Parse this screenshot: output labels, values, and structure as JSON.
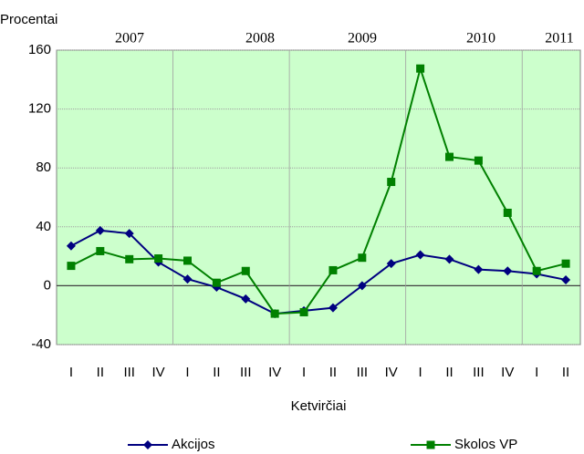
{
  "chart_data": {
    "type": "line",
    "y_label": "Procentai",
    "x_label": "Ketvirčiai",
    "years": [
      "2007",
      "2008",
      "2009",
      "2010",
      "2011"
    ],
    "categories": [
      "I",
      "II",
      "III",
      "IV",
      "I",
      "II",
      "III",
      "IV",
      "I",
      "II",
      "III",
      "IV",
      "I",
      "II",
      "III",
      "IV",
      "I",
      "II"
    ],
    "series": [
      {
        "name": "Akcijos",
        "color": "#000080",
        "values": [
          27,
          37.5,
          35.5,
          16,
          4.5,
          -1,
          -9,
          -19,
          -17,
          -15,
          0,
          15,
          21,
          18,
          11,
          10,
          8,
          4
        ]
      },
      {
        "name": "Skolos VP",
        "color": "#008000",
        "values": [
          13.5,
          23.5,
          18,
          18.5,
          17,
          2,
          10,
          -19,
          -18,
          10.5,
          19,
          70.5,
          147.5,
          87.5,
          85,
          49.5,
          10,
          15
        ]
      }
    ],
    "ylim": [
      -40,
      160
    ],
    "yticks": [
      -40,
      0,
      40,
      80,
      120,
      160
    ],
    "grid": true,
    "background": "#ccffcc",
    "legend": "bottom"
  }
}
